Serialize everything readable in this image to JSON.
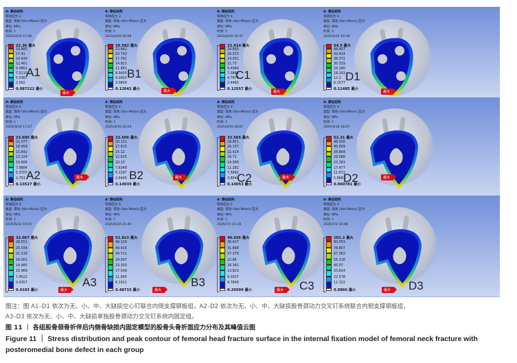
{
  "common": {
    "max_suffix": "最大",
    "min_suffix": "最小",
    "tag": "最大"
  },
  "panels": [
    {
      "id": "A1",
      "info": [
        "A: 静态结构",
        "等效应力 2",
        "类型: 等效 (Von-Mises) 应力",
        "单位: MPa",
        "时间: 1",
        "2025/4/10 17:40"
      ],
      "legend": [
        "22.36",
        "19.885",
        "17.41",
        "14.936",
        "12.461",
        "9.9862",
        "7.5115",
        "5.0367",
        "2.562",
        "0.087222"
      ]
    },
    {
      "id": "B1",
      "info": [
        "A: 静态结构",
        "等效应力 3",
        "类型: 等效 (Von-Mises) 应力",
        "单位: MPa",
        "时间: 1",
        "2025/4/10 16:08"
      ],
      "legend": [
        "26.582",
        "23.642",
        "20.702",
        "17.761",
        "14.821",
        "11.881",
        "8.9405",
        "6.0003",
        "3.0604",
        "0.12042"
      ]
    },
    {
      "id": "C1",
      "info": [
        "A: 静态结构",
        "等效应力 4",
        "类型: 等效 (Von-Mises) 应力",
        "单位: MPa",
        "时间: 1",
        "2025/4/10 10:37"
      ],
      "legend": [
        "21.014",
        "18.693",
        "16.372",
        "14.051",
        "11.73",
        "9.4089",
        "7.0882",
        "4.7674",
        "2.4465",
        "0.12557"
      ]
    },
    {
      "id": "D1",
      "info": [
        "A: 静态结构",
        "等效应力 4",
        "类型: 等效 (Von-Mises) 应力",
        "单位: MPa",
        "时间: 1",
        "2025/4/10 10:39"
      ],
      "legend": [
        "54.5",
        "48.457",
        "42.414",
        "36.372",
        "30.329",
        "24.286",
        "18.243",
        "12.2",
        "6.1577",
        "0.11485"
      ]
    },
    {
      "id": "A2",
      "info": [
        "A: 静态结构",
        "等效应力 4",
        "类型: 等效 (Von-Mises) 应力",
        "单位: MPa",
        "时间: 1",
        "2025/4/10 17:27"
      ],
      "legend": [
        "23.695",
        "21.077",
        "18.459",
        "15.842",
        "13.224",
        "10.606",
        "7.9884",
        "5.3707",
        "2.753",
        "0.13527"
      ]
    },
    {
      "id": "B2",
      "info": [
        "A: 静态结构",
        "等效应力 4",
        "类型: 等效 (Von-Mises) 应力",
        "单位: MPa",
        "时间: 1",
        "2025/4/10 16:24"
      ],
      "legend": [
        "22.606",
        "20.111",
        "17.615",
        "15.12",
        "12.625",
        "10.13",
        "7.6348",
        "5.1397",
        "2.6445",
        "0.14939"
      ]
    },
    {
      "id": "C2",
      "info": [
        "A: 静态结构",
        "等效应力 4",
        "类型: 等效 (Von-Mises) 应力",
        "单位: MPa",
        "时间: 1",
        "2025/4/10 18:07"
      ],
      "legend": [
        "33.565",
        "29.851",
        "26.137",
        "22.424",
        "18.71",
        "14.996",
        "11.282",
        "7.5682",
        "3.8544",
        "0.14053"
      ]
    },
    {
      "id": "D2",
      "info": [
        "A: 静态结构",
        "等效应力 4",
        "类型: 等效 (Von-Mises) 应力",
        "单位: MPa",
        "时间: 1",
        "2025/4/10 18:47"
      ],
      "legend": [
        "52.31",
        "46.505",
        "40.699",
        "34.894",
        "29.088",
        "23.283",
        "17.477",
        "11.672",
        "5.8663",
        "0.060781"
      ]
    },
    {
      "id": "A3",
      "info": [
        "A: 静态结构",
        "等效应力 4",
        "类型: 等效 (Von-Mises) 应力",
        "单位: MPa",
        "时间: 1",
        "2025/6/22 19:55"
      ],
      "legend": [
        "32.067",
        "28.551",
        "25.034",
        "21.518",
        "18.001",
        "14.485",
        "10.969",
        "7.4522",
        "3.9357",
        "0.4193"
      ]
    },
    {
      "id": "B3",
      "info": [
        "A: 静态结构",
        "等效应力 3",
        "类型: 等效 (Von-Mises) 应力",
        "单位: MPa",
        "时间: 1",
        "2025/6/30 21:44"
      ],
      "legend": [
        "51.823",
        "46.119",
        "40.415",
        "34.711",
        "29.007",
        "23.303",
        "17.599",
        "11.895",
        "6.1911",
        "0.48715"
      ]
    },
    {
      "id": "C3",
      "info": [
        "A: 静态结构",
        "等效应力 2",
        "类型: 等效 (Von-Mises) 应力",
        "单位: MPa",
        "时间: 1",
        "2025/7/1 11:36"
      ],
      "legend": [
        "40.936",
        "36.417",
        "31.898",
        "27.379",
        "22.86",
        "18.341",
        "13.823",
        "9.3037",
        "4.7848",
        "0.26599"
      ]
    },
    {
      "id": "D3",
      "info": [
        "A: 静态结构",
        "等效应力 2",
        "类型: 等效 (Von-Mises) 应力",
        "单位: MPa",
        "时间: 1",
        "2025/7/2 10:48"
      ],
      "legend": [
        "101.3",
        "90.053",
        "78.807",
        "67.562",
        "56.316",
        "45.07",
        "33.824",
        "22.578",
        "11.332",
        "0.0866"
      ]
    }
  ],
  "legend_colors": [
    "#e00a0a",
    "#f5a000",
    "#f2f000",
    "#a6e400",
    "#10d010",
    "#00e39a",
    "#00f0f0",
    "#0aa0ff",
    "#0010d8",
    "#ffffff"
  ],
  "caption": {
    "note_line1": "图注：图 A1–D1 依次为无、小、中、大缺损空心钉联合内侧支撑钢板组，A2–D2 依次为无、小、中、大缺损股骨颈动力交叉钉系统联合内侧支撑钢板组，",
    "note_line2": "A3–D3 依次为无、小、中、大缺损单独股骨颈动力交叉钉系统内固定组。",
    "title_cn": "图 11 ｜ 各组股骨颈骨折伴后内侧骨缺损内固定模型的股骨头骨折面应力分布及其峰值云图",
    "title_en": "Figure 11 ｜ Stress distribution and peak contour of femoral head fracture surface in the internal fixation model of femoral neck fracture with posteromedial bone defect in each group"
  }
}
